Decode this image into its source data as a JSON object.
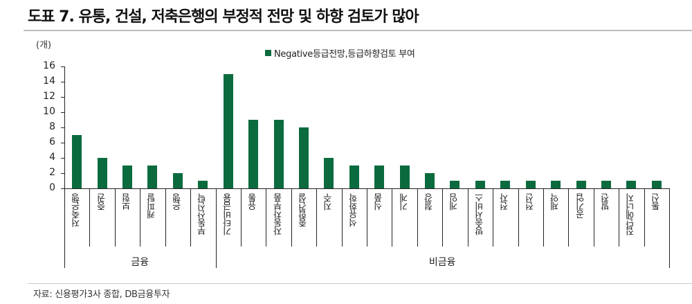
{
  "title": "도표 7. 유통, 건설, 저축은행의 부정적 전망 및 하향 검토가 많아",
  "unit": "(개)",
  "legend": "Negative등급전망,등급하향검토 부여",
  "source": "자료:  신용평가3사 종합, DB금융투자",
  "colors": {
    "bar": "#0b6b3f"
  },
  "chart_data": {
    "type": "bar",
    "title": "도표 7. 유통, 건설, 저축은행의 부정적 전망 및 하향 검토가 많아",
    "ylabel": "(개)",
    "xlabel": "",
    "ylim": [
      0,
      16
    ],
    "yticks": [
      0,
      2,
      4,
      6,
      8,
      10,
      12,
      14,
      16
    ],
    "grid": false,
    "legend_position": "top-center",
    "categories": [
      "저축은행",
      "증권",
      "보험",
      "캐피탈",
      "은행",
      "부동산신탁",
      "기타비금융",
      "유통",
      "자동차부품",
      "종합건설",
      "지주",
      "석유화학",
      "식품",
      "기계",
      "철강",
      "게임",
      "방송서비스",
      "전자",
      "전선",
      "제약",
      "공기업",
      "발전",
      "집단에너지",
      "통신"
    ],
    "series": [
      {
        "name": "Negative등급전망,등급하향검토 부여",
        "values": [
          7,
          4,
          3,
          3,
          2,
          1,
          15,
          9,
          9,
          8,
          4,
          3,
          3,
          3,
          2,
          1,
          1,
          1,
          1,
          1,
          1,
          1,
          1,
          1
        ]
      }
    ],
    "groups": [
      {
        "label": "금융",
        "start": 0,
        "end": 5
      },
      {
        "label": "비금융",
        "start": 6,
        "end": 23
      }
    ]
  }
}
